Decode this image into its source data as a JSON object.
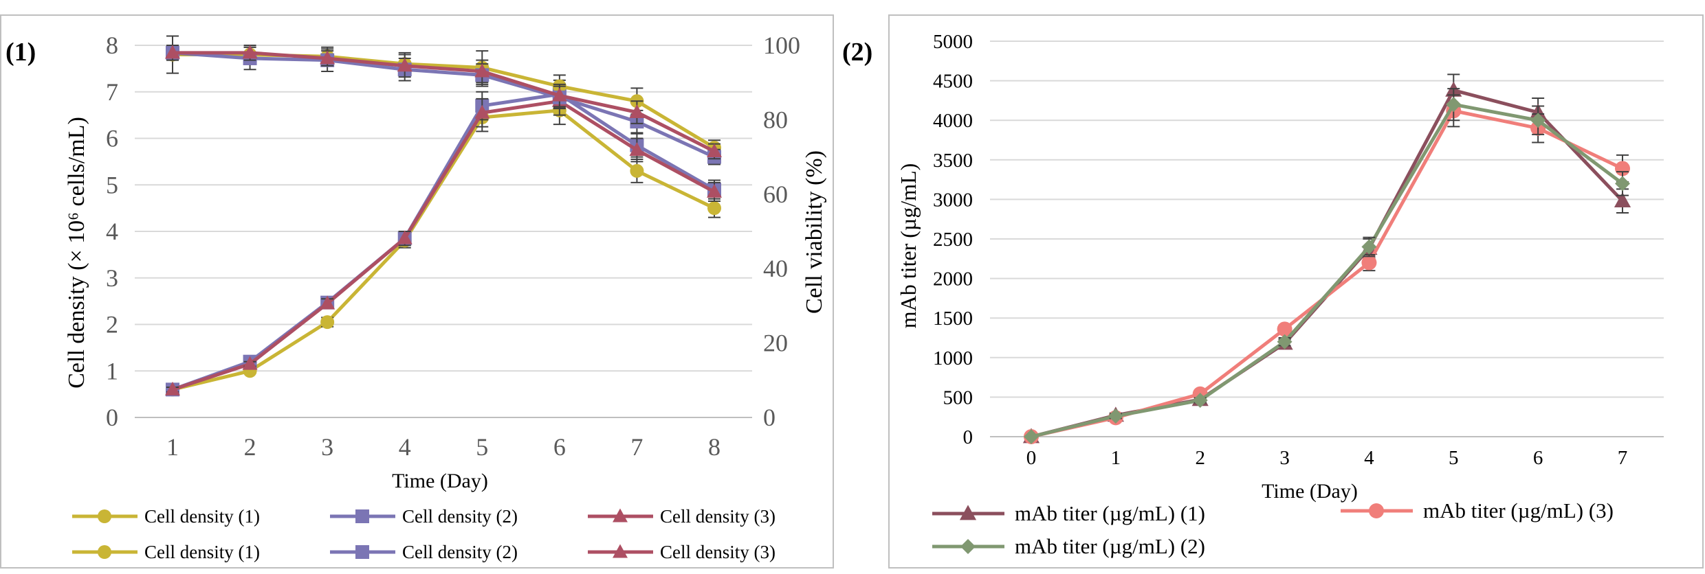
{
  "panels": [
    {
      "id": "panel1",
      "panel_label": "(1)",
      "colors": {
        "series": [
          "#c9b535",
          "#7b75b4",
          "#ad4f63"
        ]
      },
      "chart_data": {
        "type": "line",
        "x": [
          1,
          2,
          3,
          4,
          5,
          6,
          7,
          8
        ],
        "xlabel": "Time (Day)",
        "ylabel_left": "Cell density (× 10⁶ cells/mL)",
        "ylabel_right": "Cell viability (%)",
        "ylim_left": [
          0,
          8
        ],
        "ylim_right": [
          0,
          100
        ],
        "yticks_left": [
          0,
          1,
          2,
          3,
          4,
          5,
          6,
          7,
          8
        ],
        "yticks_right": [
          0,
          20,
          40,
          60,
          80,
          100
        ],
        "grid": true,
        "legend_position": "bottom",
        "series": [
          {
            "name": "Cell density (1)",
            "axis": "left",
            "marker": "circle",
            "values": [
              0.6,
              1.0,
              2.05,
              3.8,
              6.45,
              6.6,
              5.3,
              4.5
            ],
            "errors": [
              0.05,
              0.05,
              0.1,
              0.15,
              0.3,
              0.3,
              0.25,
              0.2
            ]
          },
          {
            "name": "Cell density (2)",
            "axis": "left",
            "marker": "square",
            "values": [
              0.6,
              1.2,
              2.47,
              3.85,
              6.7,
              6.95,
              5.85,
              4.9
            ],
            "errors": [
              0.05,
              0.05,
              0.1,
              0.15,
              0.3,
              0.3,
              0.25,
              0.2
            ]
          },
          {
            "name": "Cell density (3)",
            "axis": "left",
            "marker": "triangle",
            "values": [
              0.6,
              1.15,
              2.45,
              3.85,
              6.55,
              6.8,
              5.75,
              4.85
            ],
            "errors": [
              0.05,
              0.05,
              0.1,
              0.15,
              0.3,
              0.3,
              0.25,
              0.2
            ]
          },
          {
            "name": "Cell density (1)",
            "axis": "right",
            "marker": "circle",
            "values": [
              97.5,
              97.5,
              97.0,
              95.0,
              94.0,
              89.0,
              85.0,
              72.5
            ],
            "errors": [
              5,
              2,
              2.5,
              3,
              4.5,
              3,
              3.5,
              2
            ]
          },
          {
            "name": "Cell density (2)",
            "axis": "right",
            "marker": "square",
            "values": [
              98.0,
              96.5,
              96.0,
              93.5,
              92.0,
              86.0,
              79.5,
              70.0
            ],
            "errors": [
              2,
              3,
              3,
              3,
              3,
              3,
              3,
              2
            ]
          },
          {
            "name": "Cell density (3)",
            "axis": "right",
            "marker": "triangle",
            "values": [
              98.0,
              98.0,
              96.5,
              94.5,
              93.0,
              86.5,
              82.0,
              71.5
            ],
            "errors": [
              2,
              2,
              2,
              3,
              3,
              3,
              3,
              2
            ]
          }
        ]
      }
    },
    {
      "id": "panel2",
      "panel_label": "(2)",
      "colors": {
        "series": [
          "#8b4f5d",
          "#f07e7a",
          "#809871"
        ]
      },
      "chart_data": {
        "type": "line",
        "x": [
          0,
          1,
          2,
          3,
          4,
          5,
          6,
          7
        ],
        "xlabel": "Time (Day)",
        "ylabel": "mAb titer (µg/mL)",
        "ylim": [
          0,
          5000
        ],
        "yticks": [
          0,
          500,
          1000,
          1500,
          2000,
          2500,
          3000,
          3500,
          4000,
          4500,
          5000
        ],
        "grid": true,
        "legend_position": "bottom",
        "series": [
          {
            "name": "mAb titer (µg/mL) (1)",
            "marker": "triangle",
            "values": [
              0,
              270,
              470,
              1180,
              2380,
              4380,
              4100,
              2980
            ],
            "errors": [
              0,
              30,
              30,
              50,
              120,
              200,
              180,
              150
            ]
          },
          {
            "name": "mAb titer (µg/mL) (3)",
            "marker": "circle",
            "values": [
              0,
              240,
              540,
              1360,
              2200,
              4120,
              3900,
              3390
            ],
            "errors": [
              0,
              30,
              30,
              50,
              100,
              200,
              180,
              170
            ]
          },
          {
            "name": "mAb titer (µg/mL) (2)",
            "marker": "diamond",
            "values": [
              0,
              260,
              460,
              1200,
              2400,
              4200,
              4000,
              3200
            ],
            "errors": [
              0,
              30,
              30,
              50,
              120,
              200,
              180,
              150
            ]
          }
        ]
      }
    }
  ]
}
